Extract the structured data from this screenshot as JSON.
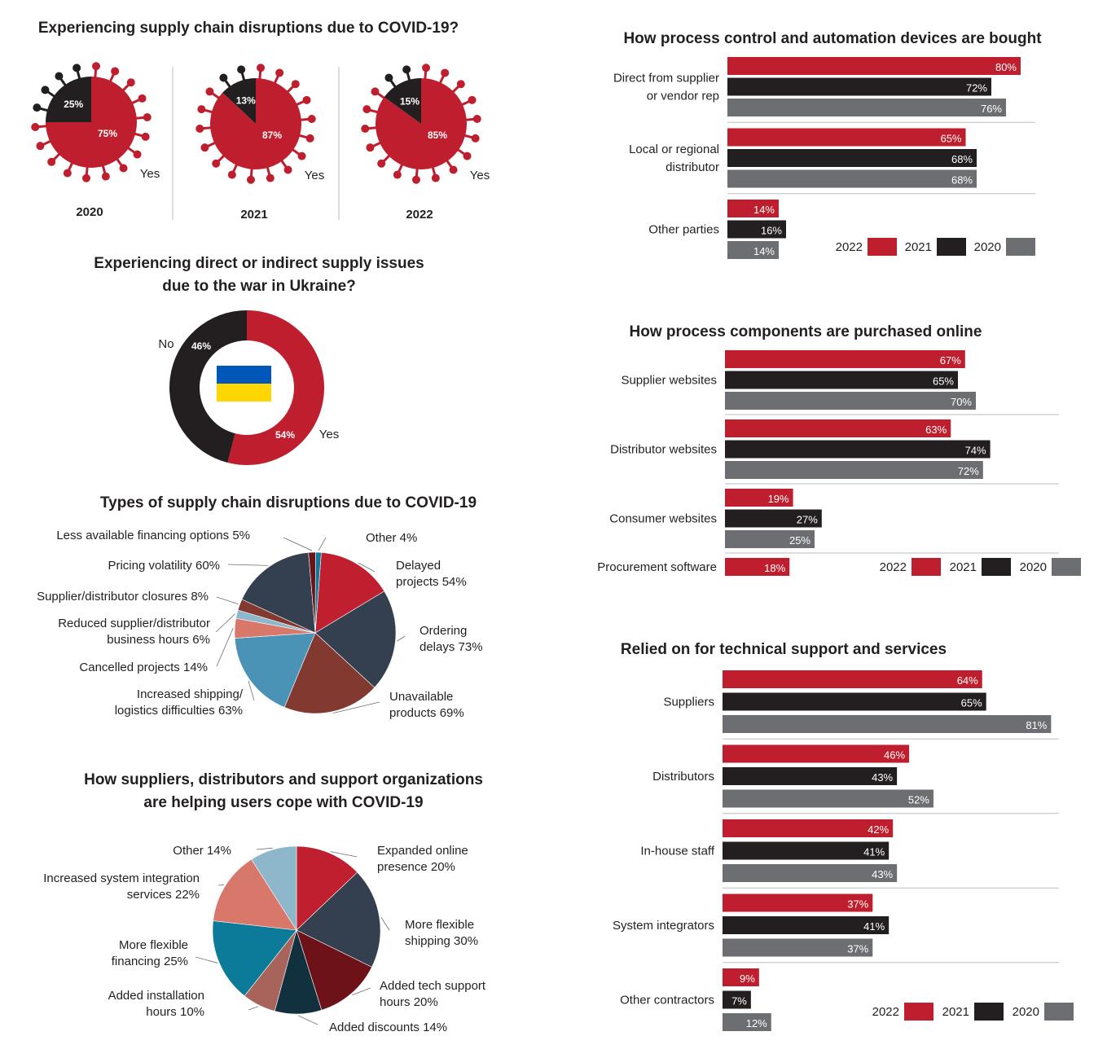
{
  "colors": {
    "red": "#be1e2d",
    "black": "#231f20",
    "gray": "#6d6e71",
    "pie_red": "#bf1f2f",
    "pie_navy": "#34404f",
    "pie_brown": "#823a30",
    "pie_blue": "#4a93b7",
    "pie_salmon": "#d8786a",
    "pie_lightblue": "#8fb7cc",
    "pie_darkred": "#6c1218",
    "pie_teal": "#0c7a99",
    "pie_dark": "#12313f",
    "pie_rust": "#a8645a"
  },
  "chart_data": [
    {
      "id": "covid-disruptions",
      "type": "pie",
      "title": "Experiencing supply chain disruptions due to COVID-19?",
      "yes_label": "Yes",
      "panels": [
        {
          "year": "2020",
          "yes": 75,
          "no": 25,
          "yes_label": "75%",
          "no_label": "25%"
        },
        {
          "year": "2021",
          "yes": 87,
          "no": 13,
          "yes_label": "87%",
          "no_label": "13%"
        },
        {
          "year": "2022",
          "yes": 85,
          "no": 15,
          "yes_label": "85%",
          "no_label": "15%"
        }
      ]
    },
    {
      "id": "ukraine",
      "type": "pie",
      "title_line1": "Experiencing direct or indirect supply issues",
      "title_line2": "due to the war in Ukraine?",
      "slices": [
        {
          "label": "Yes",
          "value": 54,
          "value_label": "54%"
        },
        {
          "label": "No",
          "value": 46,
          "value_label": "46%"
        }
      ],
      "flag_colors": [
        "#0057b7",
        "#ffd700"
      ]
    },
    {
      "id": "covid-types",
      "type": "pie",
      "title": "Types of supply chain disruptions due to COVID-19",
      "slices": [
        {
          "value": 54,
          "label": [
            "Delayed",
            "projects 54%"
          ]
        },
        {
          "value": 73,
          "label": [
            "Ordering",
            "delays 73%"
          ]
        },
        {
          "value": 69,
          "label": [
            "Unavailable",
            "products 69%"
          ]
        },
        {
          "value": 63,
          "label": [
            "Increased shipping/",
            "logistics difficulties 63%"
          ]
        },
        {
          "value": 14,
          "label": [
            "Cancelled projects 14%"
          ]
        },
        {
          "value": 6,
          "label": [
            "Reduced supplier/distributor",
            "business hours 6%"
          ]
        },
        {
          "value": 8,
          "label": [
            "Supplier/distributor closures 8%"
          ]
        },
        {
          "value": 60,
          "label": [
            "Pricing volatility 60%"
          ]
        },
        {
          "value": 5,
          "label": [
            "Less available financing options 5%"
          ]
        },
        {
          "value": 4,
          "label": [
            "Other 4%"
          ]
        }
      ]
    },
    {
      "id": "helping",
      "type": "pie",
      "title_line1": "How suppliers, distributors and support organizations",
      "title_line2": "are helping users cope with COVID-19",
      "slices": [
        {
          "value": 20,
          "label": [
            "Expanded online",
            "presence 20%"
          ]
        },
        {
          "value": 30,
          "label": [
            "More flexible",
            "shipping 30%"
          ]
        },
        {
          "value": 20,
          "label": [
            "Added tech support",
            "hours 20%"
          ]
        },
        {
          "value": 14,
          "label": [
            "Added discounts 14%"
          ]
        },
        {
          "value": 10,
          "label": [
            "Added installation",
            "hours 10%"
          ]
        },
        {
          "value": 25,
          "label": [
            "More flexible",
            "financing 25%"
          ]
        },
        {
          "value": 22,
          "label": [
            "Increased system integration",
            "services 22%"
          ]
        },
        {
          "value": 14,
          "label": [
            "Other 14%"
          ]
        }
      ]
    },
    {
      "id": "bought",
      "type": "bar",
      "title": "How process control and automation devices are bought",
      "series_names": [
        "2022",
        "2021",
        "2020"
      ],
      "categories": [
        {
          "label": [
            "Direct from supplier",
            "or vendor rep"
          ],
          "values": [
            80,
            72,
            76
          ]
        },
        {
          "label": [
            "Local or regional",
            "distributor"
          ],
          "values": [
            65,
            68,
            68
          ]
        },
        {
          "label": [
            "Other parties"
          ],
          "values": [
            14,
            16,
            14
          ]
        }
      ]
    },
    {
      "id": "online",
      "type": "bar",
      "title": "How process components are purchased online",
      "series_names": [
        "2022",
        "2021",
        "2020"
      ],
      "categories": [
        {
          "label": [
            "Supplier websites"
          ],
          "values": [
            67,
            65,
            70
          ]
        },
        {
          "label": [
            "Distributor websites"
          ],
          "values": [
            63,
            74,
            72
          ]
        },
        {
          "label": [
            "Consumer websites"
          ],
          "values": [
            19,
            27,
            25
          ]
        },
        {
          "label": [
            "Procurement software"
          ],
          "values": [
            18,
            null,
            null
          ]
        }
      ]
    },
    {
      "id": "support",
      "type": "bar",
      "title": "Relied on for technical support and services",
      "series_names": [
        "2022",
        "2021",
        "2020"
      ],
      "categories": [
        {
          "label": [
            "Suppliers"
          ],
          "values": [
            64,
            65,
            81
          ]
        },
        {
          "label": [
            "Distributors"
          ],
          "values": [
            46,
            43,
            52
          ]
        },
        {
          "label": [
            "In-house staff"
          ],
          "values": [
            42,
            41,
            43
          ]
        },
        {
          "label": [
            "System integrators"
          ],
          "values": [
            37,
            41,
            37
          ]
        },
        {
          "label": [
            "Other contractors"
          ],
          "values": [
            9,
            7,
            12
          ]
        }
      ]
    }
  ]
}
